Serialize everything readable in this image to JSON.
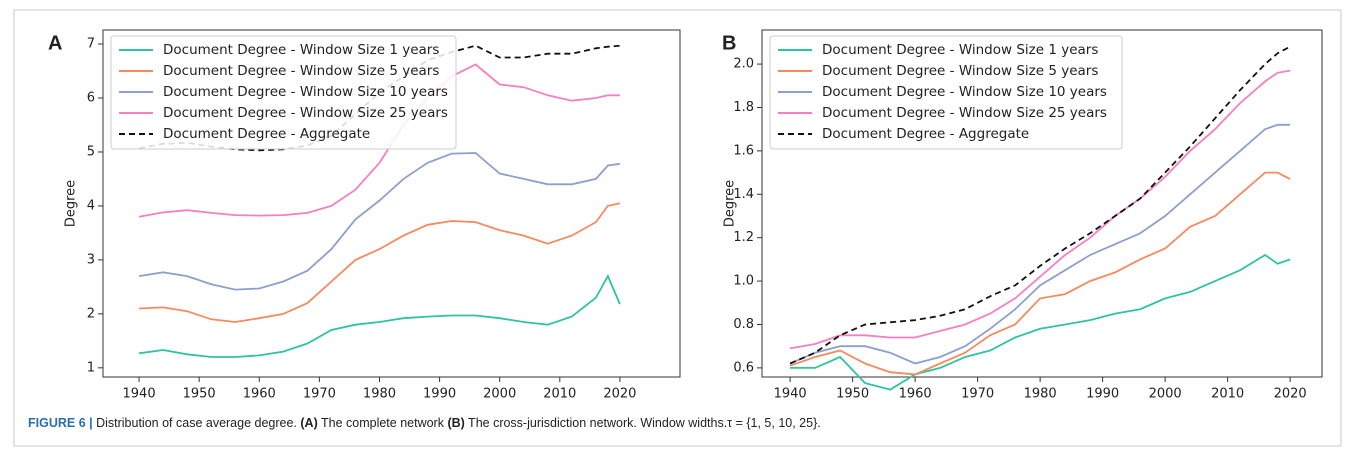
{
  "chart_data": [
    {
      "type": "line",
      "panel_label": "A",
      "ylabel": "Degree",
      "x": [
        1940,
        1944,
        1948,
        1952,
        1956,
        1960,
        1964,
        1968,
        1972,
        1976,
        1980,
        1984,
        1988,
        1992,
        1996,
        2000,
        2004,
        2008,
        2012,
        2016,
        2018,
        2020
      ],
      "xlim": [
        1934,
        2030
      ],
      "ylim": [
        0.83,
        7.26
      ],
      "xticks": [
        1940,
        1950,
        1960,
        1970,
        1980,
        1990,
        2000,
        2010,
        2020
      ],
      "yticks": [
        1,
        2,
        3,
        4,
        5,
        6,
        7
      ],
      "legend": "upper left",
      "series": [
        {
          "name": "Document Degree - Window Size 1 years",
          "color": "#2ec4a0",
          "dash": false,
          "values": [
            1.27,
            1.33,
            1.25,
            1.2,
            1.2,
            1.23,
            1.3,
            1.45,
            1.7,
            1.8,
            1.85,
            1.92,
            1.95,
            1.97,
            1.97,
            1.92,
            1.85,
            1.8,
            1.95,
            2.3,
            2.7,
            2.18
          ]
        },
        {
          "name": "Document Degree - Window Size 5 years",
          "color": "#f58a5e",
          "dash": false,
          "values": [
            2.1,
            2.12,
            2.05,
            1.9,
            1.85,
            1.92,
            2.0,
            2.2,
            2.6,
            3.0,
            3.2,
            3.45,
            3.65,
            3.72,
            3.7,
            3.55,
            3.45,
            3.3,
            3.45,
            3.7,
            4.0,
            4.05
          ]
        },
        {
          "name": "Document Degree - Window Size 10 years",
          "color": "#8da0cb",
          "dash": false,
          "values": [
            2.7,
            2.77,
            2.7,
            2.55,
            2.45,
            2.47,
            2.6,
            2.8,
            3.2,
            3.75,
            4.1,
            4.5,
            4.8,
            4.97,
            4.98,
            4.6,
            4.5,
            4.4,
            4.4,
            4.5,
            4.75,
            4.78
          ]
        },
        {
          "name": "Document Degree - Window Size 25 years",
          "color": "#f47fc4",
          "dash": false,
          "values": [
            3.8,
            3.88,
            3.92,
            3.87,
            3.83,
            3.82,
            3.83,
            3.87,
            4.0,
            4.3,
            4.8,
            5.5,
            6.0,
            6.4,
            6.62,
            6.25,
            6.2,
            6.05,
            5.95,
            6.0,
            6.05,
            6.05
          ]
        },
        {
          "name": "Document Degree - Aggregate",
          "color": "#111111",
          "dash": true,
          "values": [
            5.07,
            5.15,
            5.17,
            5.1,
            5.05,
            5.03,
            5.05,
            5.12,
            5.3,
            5.7,
            6.1,
            6.4,
            6.7,
            6.85,
            6.97,
            6.75,
            6.75,
            6.82,
            6.82,
            6.92,
            6.95,
            6.97
          ]
        }
      ]
    },
    {
      "type": "line",
      "panel_label": "B",
      "ylabel": "Degree",
      "x": [
        1940,
        1944,
        1948,
        1952,
        1956,
        1960,
        1964,
        1968,
        1972,
        1976,
        1980,
        1984,
        1988,
        1992,
        1996,
        2000,
        2004,
        2008,
        2012,
        2016,
        2018,
        2020
      ],
      "xlim": [
        1935.5,
        2025.1
      ],
      "ylim": [
        0.558,
        2.157
      ],
      "xticks": [
        1940,
        1950,
        1960,
        1970,
        1980,
        1990,
        2000,
        2010,
        2020
      ],
      "yticks": [
        0.6,
        0.8,
        {
          "value": 1.0,
          "label": "1.0"
        },
        1.2,
        1.4,
        1.6,
        1.8,
        {
          "value": 2.0,
          "label": "2.0"
        }
      ],
      "legend": "upper left",
      "series": [
        {
          "name": "Document Degree - Window Size 1 years",
          "color": "#2ec4a0",
          "dash": false,
          "values": [
            0.6,
            0.6,
            0.65,
            0.53,
            0.5,
            0.57,
            0.6,
            0.65,
            0.68,
            0.74,
            0.78,
            0.8,
            0.82,
            0.85,
            0.87,
            0.92,
            0.95,
            1.0,
            1.05,
            1.12,
            1.08,
            1.1
          ]
        },
        {
          "name": "Document Degree - Window Size 5 years",
          "color": "#f58a5e",
          "dash": false,
          "values": [
            0.61,
            0.65,
            0.68,
            0.62,
            0.58,
            0.57,
            0.62,
            0.67,
            0.75,
            0.8,
            0.92,
            0.94,
            1.0,
            1.04,
            1.1,
            1.15,
            1.25,
            1.3,
            1.4,
            1.5,
            1.5,
            1.47
          ]
        },
        {
          "name": "Document Degree - Window Size 10 years",
          "color": "#8da0cb",
          "dash": false,
          "values": [
            0.62,
            0.67,
            0.7,
            0.7,
            0.67,
            0.62,
            0.65,
            0.7,
            0.78,
            0.87,
            0.98,
            1.05,
            1.12,
            1.17,
            1.22,
            1.3,
            1.4,
            1.5,
            1.6,
            1.7,
            1.72,
            1.72
          ]
        },
        {
          "name": "Document Degree - Window Size 25 years",
          "color": "#f47fc4",
          "dash": false,
          "values": [
            0.69,
            0.71,
            0.75,
            0.75,
            0.74,
            0.74,
            0.77,
            0.8,
            0.85,
            0.92,
            1.02,
            1.12,
            1.2,
            1.3,
            1.38,
            1.48,
            1.6,
            1.7,
            1.82,
            1.92,
            1.96,
            1.97
          ]
        },
        {
          "name": "Document Degree - Aggregate",
          "color": "#111111",
          "dash": true,
          "values": [
            0.62,
            0.67,
            0.75,
            0.8,
            0.81,
            0.82,
            0.84,
            0.87,
            0.93,
            0.98,
            1.07,
            1.15,
            1.22,
            1.3,
            1.38,
            1.5,
            1.62,
            1.75,
            1.88,
            2.0,
            2.05,
            2.08
          ]
        }
      ]
    }
  ],
  "caption": [
    {
      "text": "FIGURE 6 | ",
      "bold": true
    },
    {
      "text": "Distribution of case average degree. ",
      "bold": false
    },
    {
      "text": "(A)",
      "bold": true
    },
    {
      "text": " The complete network ",
      "bold": false
    },
    {
      "text": "(B)",
      "bold": true
    },
    {
      "text": " The cross-jurisdiction network. Window widths.τ = {1, 5, 10, 25}.",
      "bold": false
    }
  ]
}
